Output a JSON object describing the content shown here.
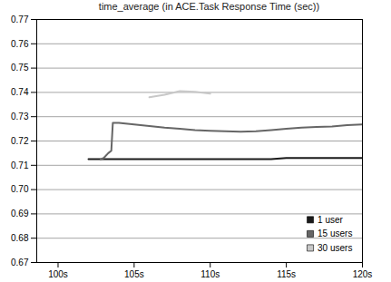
{
  "chart_data": {
    "type": "line",
    "title": "time_average (in ACE.Task Response Time (sec))",
    "x": [
      102,
      102.5,
      102.8,
      103,
      103.3,
      103.5,
      103.6,
      104,
      105,
      106,
      107,
      108,
      109,
      110,
      111,
      112,
      113,
      114,
      115,
      116,
      117,
      118,
      119,
      120
    ],
    "series": [
      {
        "name": "1 user",
        "color": "#1a1a1a",
        "values": [
          0.7125,
          0.7125,
          0.7125,
          0.7125,
          0.7125,
          0.7125,
          0.7125,
          0.7125,
          0.7125,
          0.7125,
          0.7125,
          0.7125,
          0.7125,
          0.7125,
          0.7125,
          0.7125,
          0.7125,
          0.7125,
          0.713,
          0.713,
          0.713,
          0.713,
          0.713,
          0.713
        ]
      },
      {
        "name": "15 users",
        "color": "#666666",
        "values": [
          null,
          null,
          0.7125,
          0.713,
          0.715,
          0.716,
          0.7275,
          0.7275,
          0.7268,
          0.7262,
          0.7255,
          0.725,
          0.7245,
          0.7242,
          0.724,
          0.7238,
          0.724,
          0.7245,
          0.725,
          0.7255,
          0.7258,
          0.726,
          0.7265,
          0.7268
        ]
      },
      {
        "name": "30 users",
        "color": "#c8c8c8",
        "values": [
          null,
          null,
          null,
          null,
          null,
          null,
          null,
          null,
          null,
          0.738,
          0.739,
          0.7405,
          0.7402,
          0.7395,
          null,
          null,
          null,
          null,
          null,
          null,
          null,
          null,
          null,
          null
        ]
      }
    ],
    "xlim": [
      98.6,
      120
    ],
    "xticks": [
      {
        "value": 100,
        "label": "100s"
      },
      {
        "value": 105,
        "label": "105s"
      },
      {
        "value": 110,
        "label": "110s"
      },
      {
        "value": 115,
        "label": "115s"
      },
      {
        "value": 120,
        "label": "120s"
      }
    ],
    "ylim": [
      0.67,
      0.77
    ],
    "yticks": [
      0.67,
      0.68,
      0.69,
      {
        "value": 0.7,
        "label": "0.70"
      },
      0.71,
      0.72,
      0.73,
      0.74,
      0.75,
      0.76,
      0.77
    ],
    "grid": true,
    "legend": "bottom-right"
  }
}
